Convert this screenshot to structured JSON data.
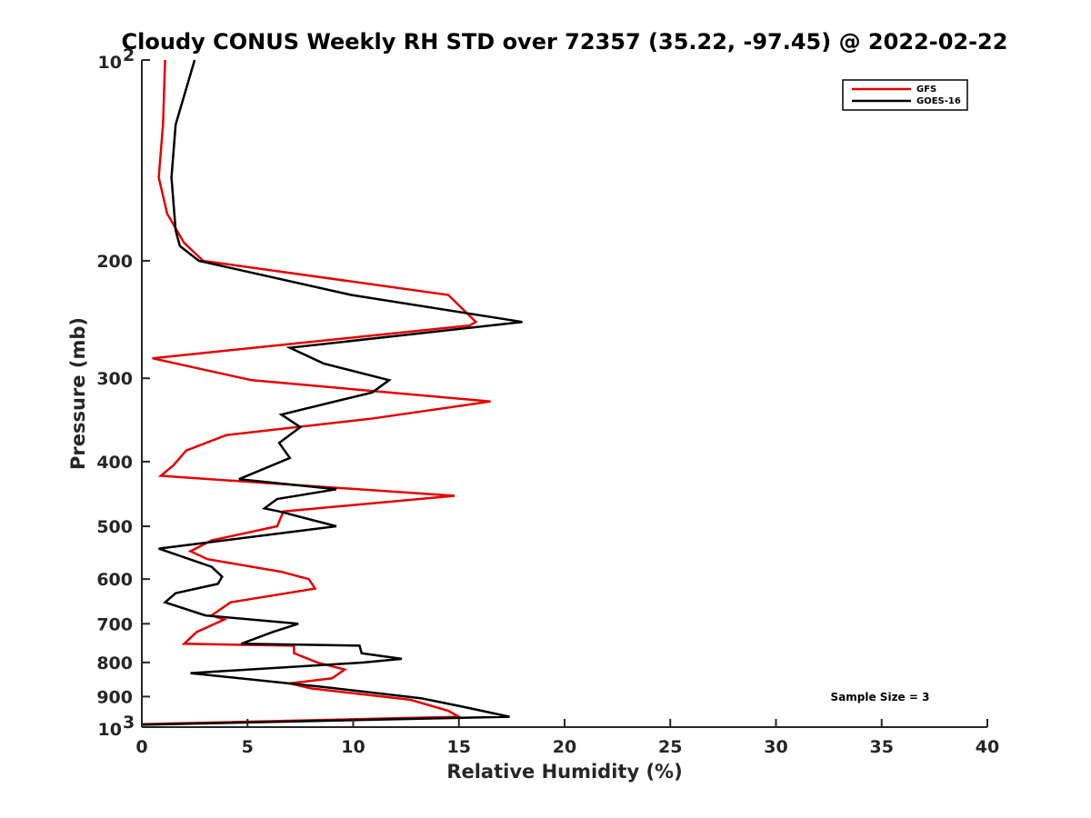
{
  "chart_data": {
    "type": "line",
    "title": "Cloudy CONUS Weekly RH STD over 72357 (35.22, -97.45) @ 2022-02-22",
    "xlabel": "Relative Humidity (%)",
    "ylabel": "Pressure (mb)",
    "xlim": [
      0,
      40
    ],
    "ylim": [
      100,
      1000
    ],
    "y_scale": "log",
    "y_reversed": true,
    "grid": false,
    "legend_position": "top-right",
    "x_ticks": [
      "0",
      "5",
      "10",
      "15",
      "20",
      "25",
      "30",
      "35",
      "40"
    ],
    "y_ticks": [
      {
        "value": 100,
        "base": "10",
        "exp": "2"
      },
      {
        "value": 200,
        "label": "200"
      },
      {
        "value": 300,
        "label": "300"
      },
      {
        "value": 400,
        "label": "400"
      },
      {
        "value": 500,
        "label": "500"
      },
      {
        "value": 600,
        "label": "600"
      },
      {
        "value": 700,
        "label": "700"
      },
      {
        "value": 800,
        "label": "800"
      },
      {
        "value": 900,
        "label": "900"
      },
      {
        "value": 1000,
        "base": "10",
        "exp": "3"
      }
    ],
    "series": [
      {
        "name": "GFS",
        "color": "#e60000",
        "points": [
          [
            1.1,
            100
          ],
          [
            1.0,
            125
          ],
          [
            0.8,
            150
          ],
          [
            1.2,
            170
          ],
          [
            2.0,
            188
          ],
          [
            2.9,
            200
          ],
          [
            14.5,
            225
          ],
          [
            15.8,
            247
          ],
          [
            15.5,
            250
          ],
          [
            0.5,
            280
          ],
          [
            5.2,
            302
          ],
          [
            16.5,
            325
          ],
          [
            10.8,
            345
          ],
          [
            4.0,
            365
          ],
          [
            2.1,
            385
          ],
          [
            1.5,
            405
          ],
          [
            0.9,
            420
          ],
          [
            14.8,
            450
          ],
          [
            6.7,
            475
          ],
          [
            6.4,
            500
          ],
          [
            3.3,
            525
          ],
          [
            2.3,
            545
          ],
          [
            3.1,
            560
          ],
          [
            6.6,
            585
          ],
          [
            7.9,
            600
          ],
          [
            8.2,
            620
          ],
          [
            4.2,
            650
          ],
          [
            3.3,
            680
          ],
          [
            3.9,
            690
          ],
          [
            2.6,
            720
          ],
          [
            2.0,
            750
          ],
          [
            7.2,
            755
          ],
          [
            7.2,
            775
          ],
          [
            8.3,
            800
          ],
          [
            9.6,
            820
          ],
          [
            9.0,
            845
          ],
          [
            7.0,
            860
          ],
          [
            8.0,
            875
          ],
          [
            12.7,
            910
          ],
          [
            14.5,
            945
          ],
          [
            15.0,
            965
          ],
          [
            0.0,
            990
          ]
        ]
      },
      {
        "name": "GOES-16",
        "color": "#000000",
        "points": [
          [
            2.5,
            100
          ],
          [
            1.6,
            125
          ],
          [
            1.4,
            150
          ],
          [
            1.6,
            180
          ],
          [
            1.8,
            190
          ],
          [
            2.7,
            200
          ],
          [
            9.9,
            225
          ],
          [
            18.0,
            247
          ],
          [
            7.0,
            270
          ],
          [
            8.6,
            285
          ],
          [
            11.7,
            302
          ],
          [
            10.9,
            315
          ],
          [
            6.6,
            340
          ],
          [
            7.5,
            355
          ],
          [
            6.5,
            375
          ],
          [
            7.0,
            395
          ],
          [
            4.6,
            425
          ],
          [
            9.2,
            440
          ],
          [
            6.4,
            455
          ],
          [
            5.8,
            470
          ],
          [
            6.5,
            475
          ],
          [
            9.2,
            500
          ],
          [
            0.8,
            540
          ],
          [
            3.3,
            575
          ],
          [
            3.8,
            595
          ],
          [
            3.6,
            610
          ],
          [
            1.6,
            630
          ],
          [
            1.1,
            650
          ],
          [
            3.0,
            680
          ],
          [
            7.4,
            700
          ],
          [
            6.2,
            720
          ],
          [
            4.7,
            750
          ],
          [
            10.3,
            755
          ],
          [
            10.4,
            775
          ],
          [
            12.3,
            790
          ],
          [
            10.5,
            800
          ],
          [
            2.3,
            830
          ],
          [
            8.5,
            870
          ],
          [
            13.2,
            905
          ],
          [
            15.4,
            935
          ],
          [
            17.4,
            965
          ],
          [
            0.0,
            992
          ]
        ]
      }
    ],
    "annotations": [
      "Sample Size = 3"
    ]
  }
}
